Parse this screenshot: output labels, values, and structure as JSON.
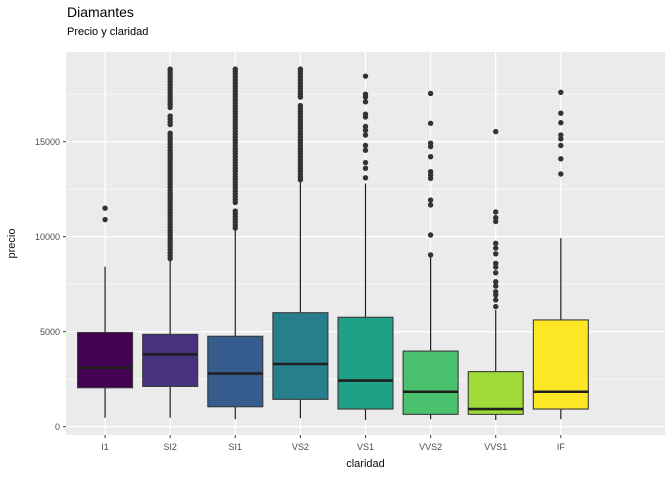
{
  "header": {
    "title": "Diamantes",
    "subtitle": "Precio y claridad"
  },
  "chart_data": {
    "type": "boxplot",
    "title": "Diamantes",
    "subtitle": "Precio y claridad",
    "xlabel": "claridad",
    "ylabel": "precio",
    "ylim": [
      -450,
      19700
    ],
    "y_major_ticks": [
      0,
      5000,
      10000,
      15000
    ],
    "y_minor_ticks": [
      2500,
      7500,
      12500,
      17500
    ],
    "grid": "on",
    "legend": "none",
    "panel_background": "#EBEBEB",
    "gridline_color": "#FFFFFF",
    "outlier_color": "#333333",
    "box_stroke_color": "#3a3a3a",
    "median_color": "#1f1f1f",
    "categories": [
      "I1",
      "SI2",
      "SI1",
      "VS2",
      "VS1",
      "VVS2",
      "VVS1",
      "IF"
    ],
    "palette": [
      "#440154",
      "#46327E",
      "#365C8D",
      "#277F8E",
      "#1FA187",
      "#4AC16D",
      "#A0DA39",
      "#FDE725"
    ],
    "boxes": [
      {
        "category": "I1",
        "fill": "#440154",
        "lower_whisker": 470,
        "q1": 2050,
        "median": 3100,
        "q3": 4960,
        "upper_whisker": 8420,
        "outliers": [
          10900,
          11500
        ]
      },
      {
        "category": "SI2",
        "fill": "#46327E",
        "lower_whisker": 470,
        "q1": 2120,
        "median": 3810,
        "q3": 4860,
        "upper_whisker": 8770,
        "outliers": [
          8850,
          9000,
          9150,
          9300,
          9450,
          9600,
          9750,
          9900,
          10050,
          10200,
          10350,
          10500,
          10650,
          10800,
          10950,
          11100,
          11250,
          11400,
          11550,
          11700,
          11850,
          12000,
          12150,
          12300,
          12450,
          12600,
          12750,
          12900,
          13050,
          13200,
          13350,
          13500,
          13650,
          13800,
          13950,
          14100,
          14250,
          14400,
          14550,
          14700,
          14850,
          15000,
          15150,
          15300,
          15450,
          15900,
          16050,
          16200,
          16350,
          16800,
          16950,
          17100,
          17250,
          17400,
          17550,
          17700,
          17850,
          18000,
          18150,
          18300,
          18450,
          18600,
          18750,
          18820
        ]
      },
      {
        "category": "SI1",
        "fill": "#365C8D",
        "lower_whisker": 390,
        "q1": 1050,
        "median": 2800,
        "q3": 4760,
        "upper_whisker": 10350,
        "outliers": [
          10450,
          10600,
          10750,
          10900,
          11050,
          11200,
          11350,
          11800,
          11950,
          12100,
          12250,
          12400,
          12550,
          12700,
          12850,
          13000,
          13150,
          13300,
          13450,
          13600,
          13750,
          13900,
          14050,
          14200,
          14350,
          14500,
          14650,
          14800,
          14950,
          15100,
          15250,
          15400,
          15550,
          15700,
          15850,
          16000,
          16150,
          16300,
          16450,
          16600,
          16750,
          16900,
          17050,
          17200,
          17350,
          17500,
          17650,
          17800,
          17950,
          18100,
          18250,
          18400,
          18550,
          18700,
          18820
        ]
      },
      {
        "category": "VS2",
        "fill": "#277F8E",
        "lower_whisker": 440,
        "q1": 1440,
        "median": 3300,
        "q3": 6000,
        "upper_whisker": 12900,
        "outliers": [
          13000,
          13150,
          13300,
          13450,
          13600,
          13750,
          13900,
          14050,
          14200,
          14350,
          14500,
          14650,
          14800,
          14950,
          15100,
          15250,
          15400,
          15550,
          15700,
          15850,
          16000,
          16150,
          16300,
          16450,
          16600,
          16750,
          16900,
          17350,
          17500,
          17650,
          17800,
          17950,
          18100,
          18250,
          18400,
          18550,
          18700,
          18820
        ]
      },
      {
        "category": "VS1",
        "fill": "#1FA187",
        "lower_whisker": 350,
        "q1": 930,
        "median": 2430,
        "q3": 5760,
        "upper_whisker": 12800,
        "outliers": [
          13100,
          13600,
          13900,
          14550,
          14800,
          15350,
          15600,
          15800,
          16300,
          16450,
          17100,
          17350,
          17500,
          18450
        ]
      },
      {
        "category": "VVS2",
        "fill": "#4AC16D",
        "lower_whisker": 390,
        "q1": 650,
        "median": 1840,
        "q3": 3980,
        "upper_whisker": 8950,
        "outliers": [
          9040,
          10090,
          11670,
          11930,
          13070,
          13250,
          13420,
          14210,
          14740,
          14920,
          15970,
          17540
        ]
      },
      {
        "category": "VVS1",
        "fill": "#A0DA39",
        "lower_whisker": 350,
        "q1": 650,
        "median": 930,
        "q3": 2900,
        "upper_whisker": 6140,
        "outliers": [
          6320,
          6670,
          6930,
          7100,
          7400,
          7630,
          8100,
          8400,
          8600,
          9100,
          9400,
          9650,
          10800,
          11000,
          11300,
          15530
        ]
      },
      {
        "category": "IF",
        "fill": "#FDE725",
        "lower_whisker": 390,
        "q1": 930,
        "median": 1840,
        "q3": 5620,
        "upper_whisker": 9920,
        "outliers": [
          13300,
          14100,
          14800,
          15150,
          15350,
          16000,
          16500,
          17600
        ]
      }
    ]
  }
}
